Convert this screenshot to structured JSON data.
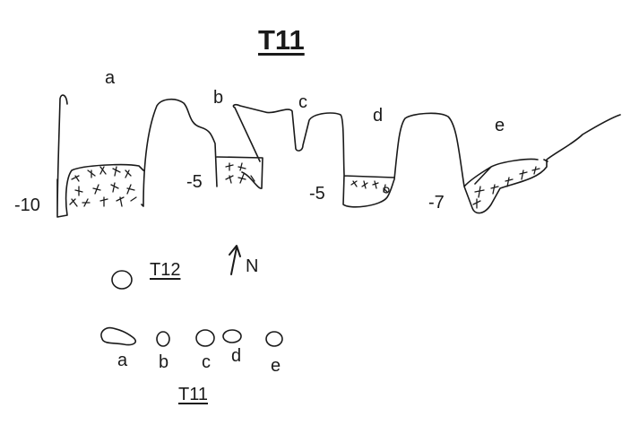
{
  "title": "T11",
  "section": {
    "labels": {
      "a": "a",
      "b": "b",
      "c": "c",
      "d": "d",
      "e": "e"
    },
    "depths": {
      "a": "-10",
      "b": "-5",
      "d": "-5",
      "e": "-7"
    }
  },
  "north": "N",
  "plan": {
    "t12_label": "T12",
    "t11_label": "T11",
    "labels": {
      "a": "a",
      "b": "b",
      "c": "c",
      "d": "d",
      "e": "e"
    }
  },
  "colors": {
    "ink": "#1a1a1a",
    "background": "#ffffff"
  }
}
